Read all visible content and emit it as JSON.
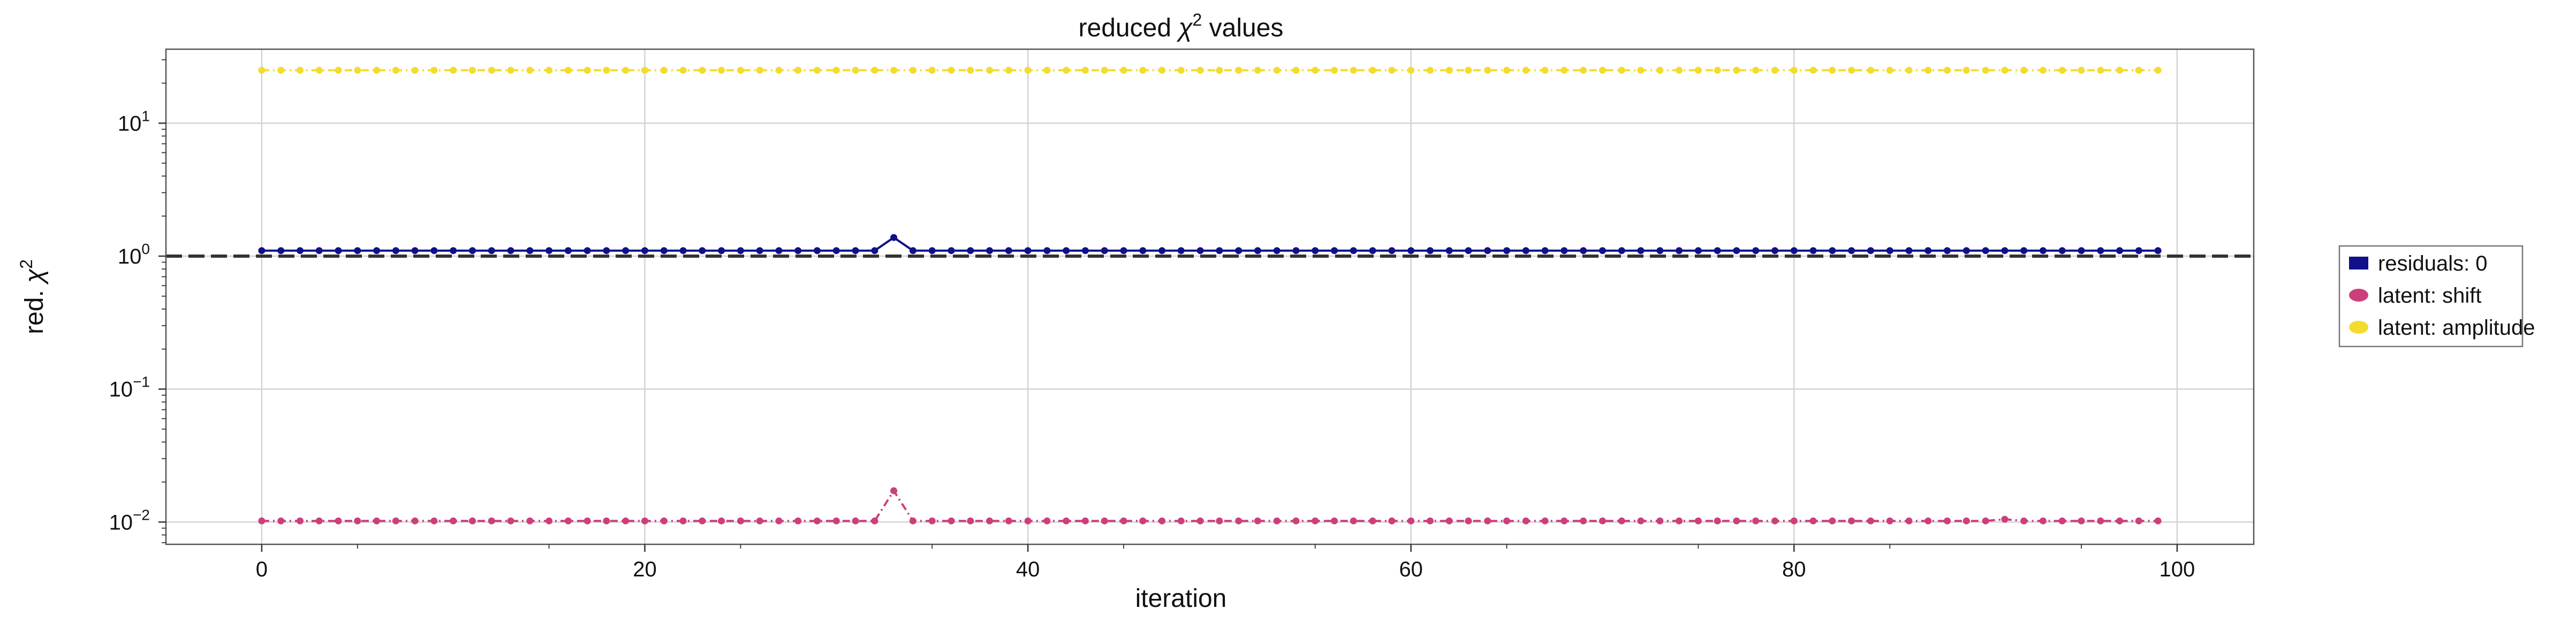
{
  "chart_data": {
    "type": "line",
    "title": "reduced χ² values",
    "title_parts": {
      "prefix": "reduced ",
      "symbol": "χ",
      "sup": "2",
      "suffix": " values"
    },
    "xlabel": "iteration",
    "ylabel": "red. χ²",
    "ylabel_parts": {
      "prefix": "red. ",
      "symbol": "χ",
      "sup": "2"
    },
    "xlim": [
      -5,
      104
    ],
    "ylim": [
      0.0068,
      36
    ],
    "yscale": "log",
    "xticks": [
      0,
      20,
      40,
      60,
      80,
      100
    ],
    "xtick_labels": [
      "0",
      "20",
      "40",
      "60",
      "80",
      "100"
    ],
    "yticks": [
      0.01,
      0.1,
      1,
      10
    ],
    "ytick_labels": [
      {
        "base": "10",
        "exp": "−2"
      },
      {
        "base": "10",
        "exp": "−1"
      },
      {
        "base": "10",
        "exp": "0"
      },
      {
        "base": "10",
        "exp": "1"
      }
    ],
    "grid": true,
    "reference_line": {
      "y": 1.0,
      "style": "dashed",
      "color": "#333333"
    },
    "legend_placement": "outside-right",
    "x_start": 0,
    "x_step": 1,
    "series": [
      {
        "name": "residuals: 0",
        "color": "#10108a",
        "linestyle": "solid",
        "values": [
          1.1,
          1.1,
          1.1,
          1.1,
          1.1,
          1.1,
          1.1,
          1.1,
          1.1,
          1.1,
          1.1,
          1.1,
          1.1,
          1.1,
          1.1,
          1.1,
          1.1,
          1.1,
          1.1,
          1.1,
          1.1,
          1.1,
          1.1,
          1.1,
          1.1,
          1.1,
          1.1,
          1.1,
          1.1,
          1.1,
          1.1,
          1.1,
          1.1,
          1.38,
          1.1,
          1.1,
          1.1,
          1.1,
          1.1,
          1.1,
          1.1,
          1.1,
          1.1,
          1.1,
          1.1,
          1.1,
          1.1,
          1.1,
          1.1,
          1.1,
          1.1,
          1.1,
          1.1,
          1.1,
          1.1,
          1.1,
          1.1,
          1.1,
          1.1,
          1.1,
          1.1,
          1.1,
          1.1,
          1.1,
          1.1,
          1.1,
          1.1,
          1.1,
          1.1,
          1.1,
          1.1,
          1.1,
          1.1,
          1.1,
          1.1,
          1.1,
          1.1,
          1.1,
          1.1,
          1.1,
          1.1,
          1.1,
          1.1,
          1.1,
          1.1,
          1.1,
          1.1,
          1.1,
          1.1,
          1.1,
          1.1,
          1.1,
          1.1,
          1.1,
          1.1,
          1.1,
          1.1,
          1.1,
          1.1,
          1.1
        ]
      },
      {
        "name": "latent: shift",
        "color": "#cc3f7a",
        "linestyle": "dashdot",
        "values": [
          0.0102,
          0.0102,
          0.0102,
          0.0102,
          0.0102,
          0.0102,
          0.0102,
          0.0102,
          0.0102,
          0.0102,
          0.0102,
          0.0102,
          0.0102,
          0.0102,
          0.0102,
          0.0102,
          0.0102,
          0.0102,
          0.0102,
          0.0102,
          0.0102,
          0.0102,
          0.0102,
          0.0102,
          0.0102,
          0.0102,
          0.0102,
          0.0102,
          0.0102,
          0.0102,
          0.0102,
          0.0102,
          0.0102,
          0.0172,
          0.0102,
          0.0102,
          0.0102,
          0.0102,
          0.0102,
          0.0102,
          0.0102,
          0.0102,
          0.0102,
          0.0102,
          0.0102,
          0.0102,
          0.0102,
          0.0102,
          0.0102,
          0.0102,
          0.0102,
          0.0102,
          0.0102,
          0.0102,
          0.0102,
          0.0102,
          0.0102,
          0.0102,
          0.0102,
          0.0102,
          0.0102,
          0.0102,
          0.0102,
          0.0102,
          0.0102,
          0.0102,
          0.0102,
          0.0102,
          0.0102,
          0.0102,
          0.0102,
          0.0102,
          0.0102,
          0.0102,
          0.0102,
          0.0102,
          0.0102,
          0.0102,
          0.0102,
          0.0102,
          0.0102,
          0.0102,
          0.0102,
          0.0102,
          0.0102,
          0.0102,
          0.0102,
          0.0102,
          0.0102,
          0.0102,
          0.0102,
          0.0105,
          0.0102,
          0.0102,
          0.0102,
          0.0102,
          0.0102,
          0.0102,
          0.0102,
          0.0102
        ]
      },
      {
        "name": "latent: amplitude",
        "color": "#f2dc2e",
        "linestyle": "dashdot",
        "values": [
          25,
          25,
          25,
          25,
          25,
          25,
          25,
          25,
          25,
          25,
          25,
          25,
          25,
          25,
          25,
          25,
          25,
          25,
          25,
          25,
          25,
          25,
          25,
          25,
          25,
          25,
          25,
          25,
          25,
          25,
          25,
          25,
          25,
          25,
          25,
          25,
          25,
          25,
          25,
          25,
          25,
          25,
          25,
          25,
          25,
          25,
          25,
          25,
          25,
          25,
          25,
          25,
          25,
          25,
          25,
          25,
          25,
          25,
          25,
          25,
          25,
          25,
          25,
          25,
          25,
          25,
          25,
          25,
          25,
          25,
          25,
          25,
          25,
          25,
          25,
          25,
          25,
          25,
          25,
          25,
          25,
          25,
          25,
          25,
          25,
          25,
          25,
          25,
          25,
          25,
          25,
          25,
          25,
          25,
          25,
          25,
          25,
          25,
          25,
          25
        ]
      }
    ]
  }
}
